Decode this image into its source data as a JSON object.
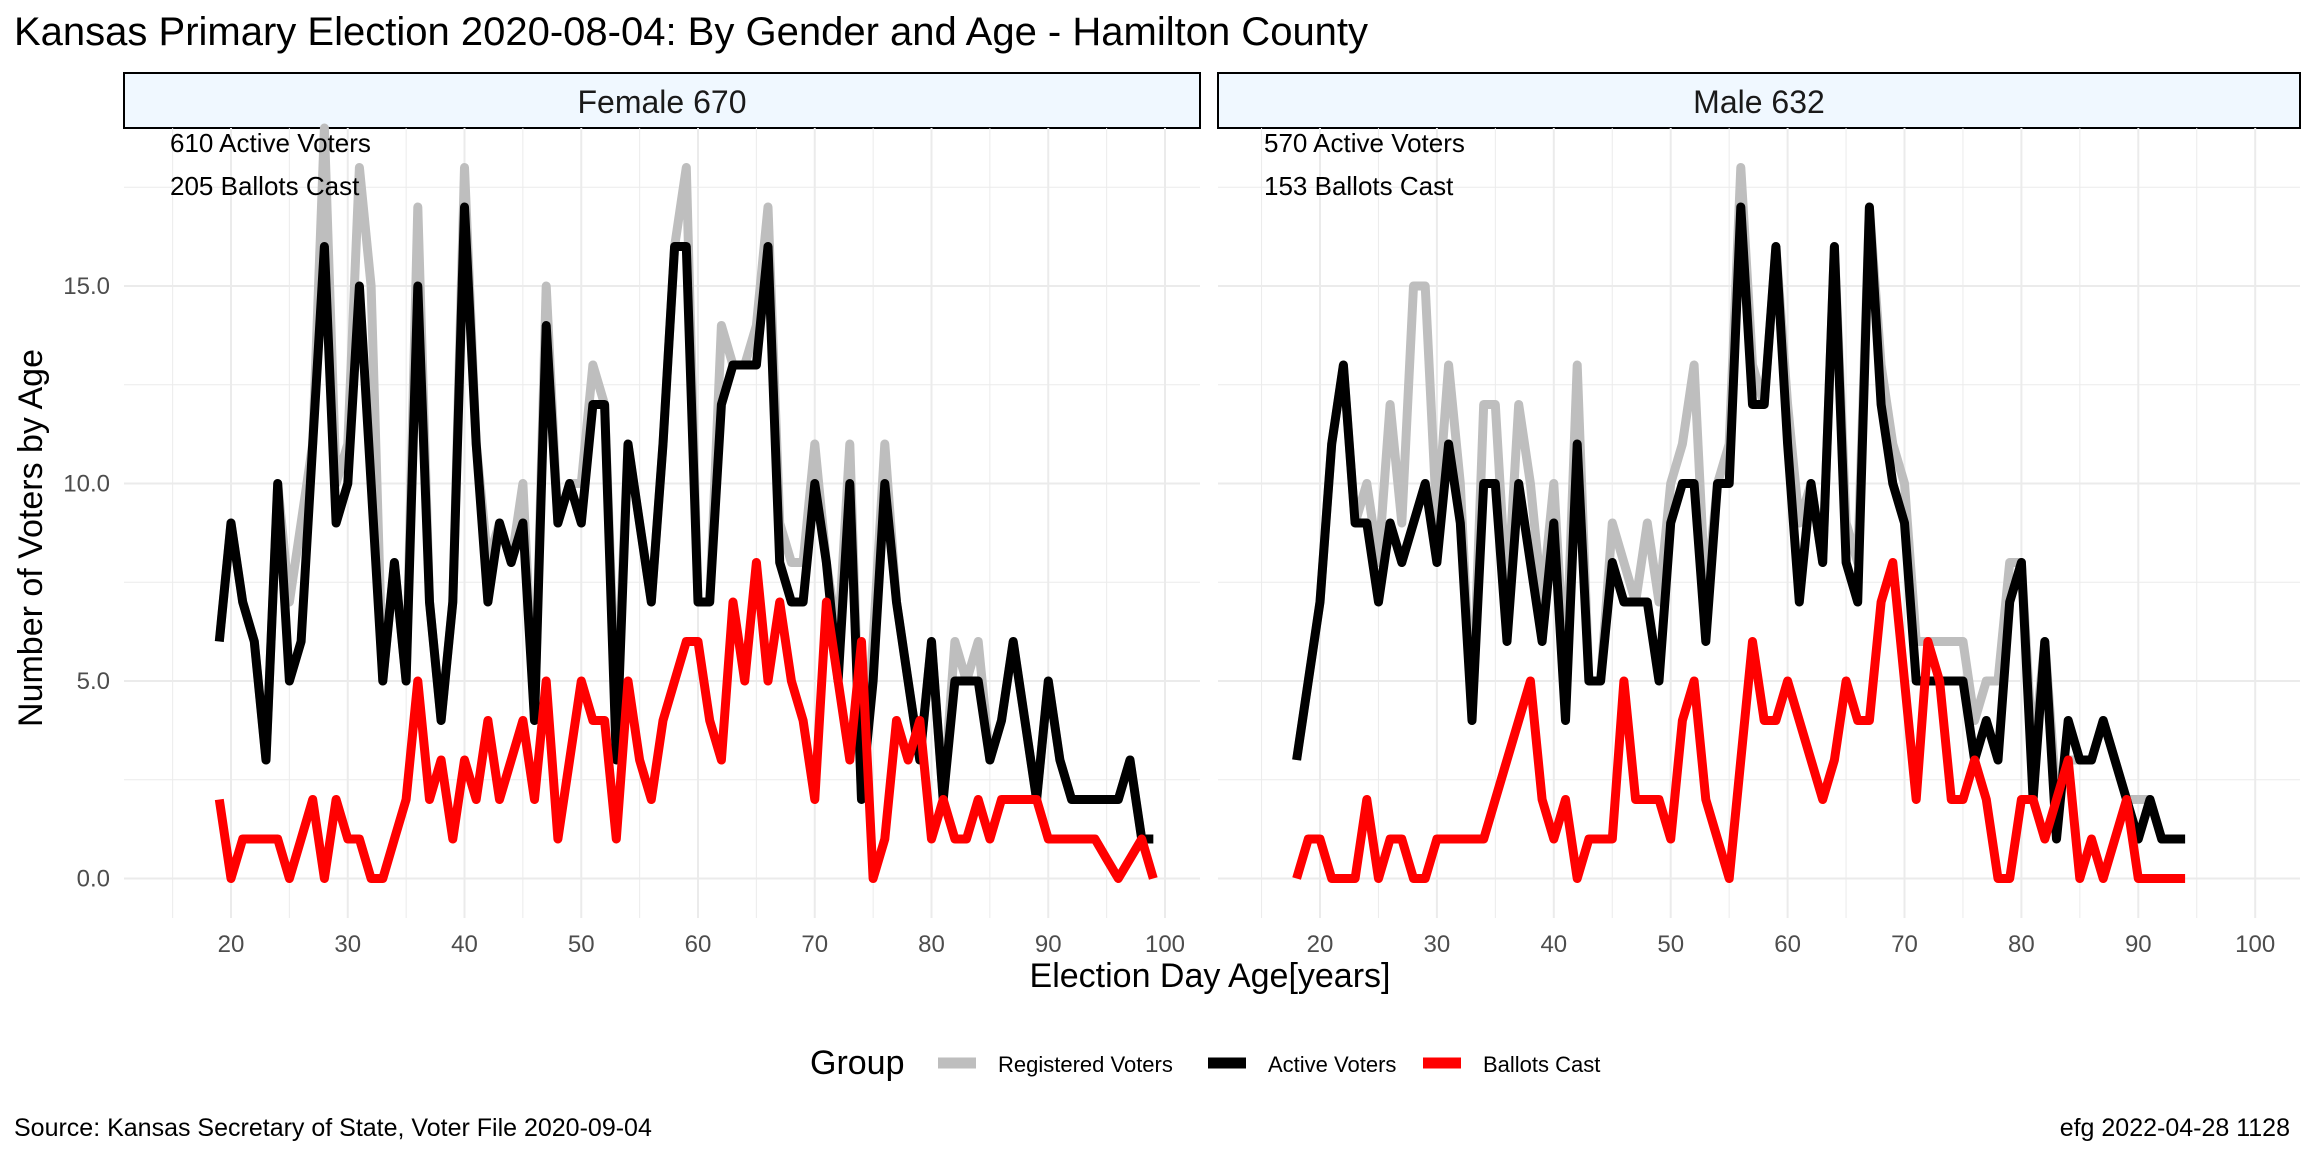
{
  "title": "Kansas Primary Election 2020-08-04:  By Gender and Age - Hamilton County",
  "caption_left": "Source:  Kansas Secretary of State, Voter File  2020-09-04",
  "caption_right": "efg 2022-04-28 1128",
  "legend_title": "Group",
  "colors": {
    "registered": "#bebebe",
    "active": "#000000",
    "ballots": "#ff0000",
    "strip_fill": "#f0f8ff",
    "grid": "#ebebeb"
  },
  "chart_data": {
    "type": "line",
    "xlabel": "Election Day Age[years]",
    "ylabel": "Number of Voters by Age",
    "xlim": [
      17,
      102
    ],
    "ylim": [
      -1,
      19
    ],
    "x_ticks": [
      "20",
      "30",
      "40",
      "50",
      "60",
      "70",
      "80",
      "90",
      "100"
    ],
    "y_ticks": [
      "0.0",
      "5.0",
      "10.0",
      "15.0"
    ],
    "legend_placement": "bottom",
    "grid": true,
    "series_names": [
      "Registered Voters",
      "Active Voters",
      "Ballots Cast"
    ],
    "panels": [
      {
        "strip": "Female 670",
        "annotations": [
          "610 Active Voters",
          "205 Ballots Cast"
        ],
        "series": [
          {
            "name": "Registered Voters",
            "x": [
              19,
              20,
              21,
              22,
              23,
              24,
              25,
              26,
              27,
              28,
              29,
              30,
              31,
              32,
              33,
              34,
              35,
              36,
              37,
              38,
              39,
              40,
              41,
              42,
              43,
              44,
              45,
              46,
              47,
              48,
              49,
              50,
              51,
              52,
              53,
              54,
              55,
              56,
              57,
              58,
              59,
              60,
              61,
              62,
              63,
              64,
              65,
              66,
              67,
              68,
              69,
              70,
              71,
              72,
              73,
              74,
              75,
              76,
              77,
              78,
              79,
              80,
              81,
              82,
              83,
              84,
              85,
              86,
              87,
              88,
              89,
              90,
              91,
              92,
              93,
              94,
              95,
              96,
              97,
              98,
              99
            ],
            "values": [
              6,
              9,
              7,
              6,
              3,
              10,
              7,
              9,
              11,
              19,
              10,
              11,
              18,
              15,
              5,
              8,
              5,
              17,
              7,
              4,
              7,
              18,
              11,
              8,
              9,
              8,
              10,
              4,
              15,
              9,
              10,
              10,
              13,
              12,
              4,
              11,
              9,
              7,
              11,
              16,
              18,
              7,
              7,
              14,
              13,
              13,
              14,
              17,
              9,
              8,
              8,
              11,
              8,
              6,
              11,
              2,
              6,
              11,
              7,
              5,
              3,
              6,
              2,
              6,
              5,
              6,
              3,
              4,
              6,
              4,
              2,
              5,
              3,
              2,
              2,
              2,
              2,
              2,
              3,
              1,
              1
            ]
          },
          {
            "name": "Active Voters",
            "x": [
              19,
              20,
              21,
              22,
              23,
              24,
              25,
              26,
              27,
              28,
              29,
              30,
              31,
              32,
              33,
              34,
              35,
              36,
              37,
              38,
              39,
              40,
              41,
              42,
              43,
              44,
              45,
              46,
              47,
              48,
              49,
              50,
              51,
              52,
              53,
              54,
              55,
              56,
              57,
              58,
              59,
              60,
              61,
              62,
              63,
              64,
              65,
              66,
              67,
              68,
              69,
              70,
              71,
              72,
              73,
              74,
              75,
              76,
              77,
              78,
              79,
              80,
              81,
              82,
              83,
              84,
              85,
              86,
              87,
              88,
              89,
              90,
              91,
              92,
              93,
              94,
              95,
              96,
              97,
              98,
              99
            ],
            "values": [
              6,
              9,
              7,
              6,
              3,
              10,
              5,
              6,
              11,
              16,
              9,
              10,
              15,
              10,
              5,
              8,
              5,
              15,
              7,
              4,
              7,
              17,
              11,
              7,
              9,
              8,
              9,
              4,
              14,
              9,
              10,
              9,
              12,
              12,
              3,
              11,
              9,
              7,
              11,
              16,
              16,
              7,
              7,
              12,
              13,
              13,
              13,
              16,
              8,
              7,
              7,
              10,
              8,
              5,
              10,
              2,
              5,
              10,
              7,
              5,
              3,
              6,
              2,
              5,
              5,
              5,
              3,
              4,
              6,
              4,
              2,
              5,
              3,
              2,
              2,
              2,
              2,
              2,
              3,
              1,
              1
            ]
          },
          {
            "name": "Ballots Cast",
            "x": [
              19,
              20,
              21,
              22,
              23,
              24,
              25,
              26,
              27,
              28,
              29,
              30,
              31,
              32,
              33,
              34,
              35,
              36,
              37,
              38,
              39,
              40,
              41,
              42,
              43,
              44,
              45,
              46,
              47,
              48,
              49,
              50,
              51,
              52,
              53,
              54,
              55,
              56,
              57,
              58,
              59,
              60,
              61,
              62,
              63,
              64,
              65,
              66,
              67,
              68,
              69,
              70,
              71,
              72,
              73,
              74,
              75,
              76,
              77,
              78,
              79,
              80,
              81,
              82,
              83,
              84,
              85,
              86,
              87,
              88,
              89,
              90,
              91,
              92,
              93,
              94,
              95,
              96,
              97,
              98,
              99
            ],
            "values": [
              2,
              0,
              1,
              1,
              1,
              1,
              0,
              1,
              2,
              0,
              2,
              1,
              1,
              0,
              0,
              1,
              2,
              5,
              2,
              3,
              1,
              3,
              2,
              4,
              2,
              3,
              4,
              2,
              5,
              1,
              3,
              5,
              4,
              4,
              1,
              5,
              3,
              2,
              4,
              5,
              6,
              6,
              4,
              3,
              7,
              5,
              8,
              5,
              7,
              5,
              4,
              2,
              7,
              5,
              3,
              6,
              0,
              1,
              4,
              3,
              4,
              1,
              2,
              1,
              1,
              2,
              1,
              2,
              2,
              2,
              2,
              1,
              1,
              1,
              1,
              1,
              0.5,
              0,
              0.5,
              1,
              0
            ]
          }
        ]
      },
      {
        "strip": "Male 632",
        "annotations": [
          "570 Active Voters",
          "153 Ballots Cast"
        ],
        "series": [
          {
            "name": "Registered Voters",
            "x": [
              18,
              19,
              20,
              21,
              22,
              23,
              24,
              25,
              26,
              27,
              28,
              29,
              30,
              31,
              32,
              33,
              34,
              35,
              36,
              37,
              38,
              39,
              40,
              41,
              42,
              43,
              44,
              45,
              46,
              47,
              48,
              49,
              50,
              51,
              52,
              53,
              54,
              55,
              56,
              57,
              58,
              59,
              60,
              61,
              62,
              63,
              64,
              65,
              66,
              67,
              68,
              69,
              70,
              71,
              72,
              73,
              74,
              75,
              76,
              77,
              78,
              79,
              80,
              81,
              82,
              83,
              84,
              85,
              86,
              87,
              88,
              89,
              90,
              91,
              92,
              93,
              94
            ],
            "values": [
              3,
              5,
              7,
              11,
              13,
              9,
              10,
              8,
              12,
              9,
              15,
              15,
              9,
              13,
              10,
              4,
              12,
              12,
              7,
              12,
              10,
              7,
              10,
              5,
              13,
              5,
              5,
              9,
              8,
              7,
              9,
              7,
              10,
              11,
              13,
              7,
              10,
              11,
              18,
              13,
              12,
              16,
              12,
              9,
              10,
              8,
              16,
              9,
              8,
              17,
              13,
              11,
              10,
              6,
              6,
              6,
              6,
              6,
              4,
              5,
              5,
              8,
              8,
              3,
              6,
              2,
              3,
              3,
              3,
              4,
              3,
              2,
              2,
              2,
              1,
              1,
              1
            ]
          },
          {
            "name": "Active Voters",
            "x": [
              18,
              19,
              20,
              21,
              22,
              23,
              24,
              25,
              26,
              27,
              28,
              29,
              30,
              31,
              32,
              33,
              34,
              35,
              36,
              37,
              38,
              39,
              40,
              41,
              42,
              43,
              44,
              45,
              46,
              47,
              48,
              49,
              50,
              51,
              52,
              53,
              54,
              55,
              56,
              57,
              58,
              59,
              60,
              61,
              62,
              63,
              64,
              65,
              66,
              67,
              68,
              69,
              70,
              71,
              72,
              73,
              74,
              75,
              76,
              77,
              78,
              79,
              80,
              81,
              82,
              83,
              84,
              85,
              86,
              87,
              88,
              89,
              90,
              91,
              92,
              93,
              94
            ],
            "values": [
              3,
              5,
              7,
              11,
              13,
              9,
              9,
              7,
              9,
              8,
              9,
              10,
              8,
              11,
              9,
              4,
              10,
              10,
              6,
              10,
              8,
              6,
              9,
              4,
              11,
              5,
              5,
              8,
              7,
              7,
              7,
              5,
              9,
              10,
              10,
              6,
              10,
              10,
              17,
              12,
              12,
              16,
              11,
              7,
              10,
              8,
              16,
              8,
              7,
              17,
              12,
              10,
              9,
              5,
              5,
              5,
              5,
              5,
              3,
              4,
              3,
              7,
              8,
              2,
              6,
              1,
              4,
              3,
              3,
              4,
              3,
              2,
              1,
              2,
              1,
              1,
              1
            ]
          },
          {
            "name": "Ballots Cast",
            "x": [
              18,
              19,
              20,
              21,
              22,
              23,
              24,
              25,
              26,
              27,
              28,
              29,
              30,
              31,
              32,
              33,
              34,
              35,
              36,
              37,
              38,
              39,
              40,
              41,
              42,
              43,
              44,
              45,
              46,
              47,
              48,
              49,
              50,
              51,
              52,
              53,
              54,
              55,
              56,
              57,
              58,
              59,
              60,
              61,
              62,
              63,
              64,
              65,
              66,
              67,
              68,
              69,
              70,
              71,
              72,
              73,
              74,
              75,
              76,
              77,
              78,
              79,
              80,
              81,
              82,
              83,
              84,
              85,
              86,
              87,
              88,
              89,
              90,
              91,
              92,
              93,
              94
            ],
            "values": [
              0,
              1,
              1,
              0,
              0,
              0,
              2,
              0,
              1,
              1,
              0,
              0,
              1,
              1,
              1,
              1,
              1,
              2,
              3,
              4,
              5,
              2,
              1,
              2,
              0,
              1,
              1,
              1,
              5,
              2,
              2,
              2,
              1,
              4,
              5,
              2,
              1,
              0,
              3,
              6,
              4,
              4,
              5,
              4,
              3,
              2,
              3,
              5,
              4,
              4,
              7,
              8,
              5,
              2,
              6,
              5,
              2,
              2,
              3,
              2,
              0,
              0,
              2,
              2,
              1,
              2,
              3,
              0,
              1,
              0,
              1,
              2,
              0,
              0,
              0,
              0,
              0
            ]
          }
        ]
      }
    ]
  }
}
